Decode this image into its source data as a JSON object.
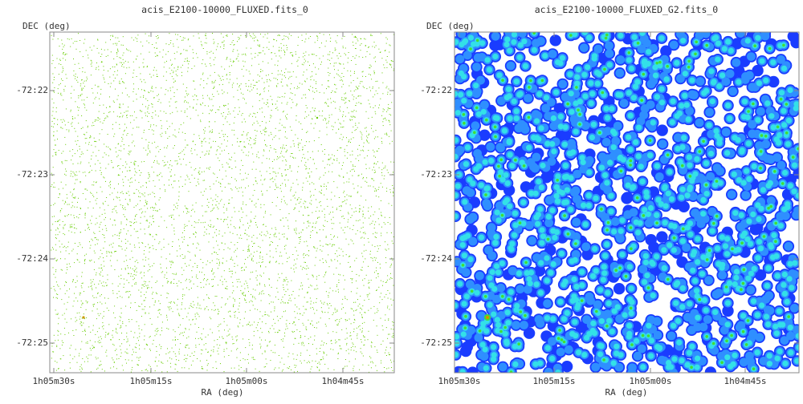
{
  "chart_data": [
    {
      "type": "heatmap",
      "title": "acis_E2100-10000_FLUXED.fits_0",
      "xlabel": "RA (deg)",
      "ylabel": "DEC (deg)",
      "xticks": [
        "1h05m30s",
        "1h05m15s",
        "1h05m00s",
        "1h04m45s"
      ],
      "yticks": [
        "-72:22",
        "-72:23",
        "-72:24",
        "-72:25"
      ],
      "style": "sparse-points",
      "colors": {
        "primary": "#66cc00",
        "hot": "#cc9900"
      }
    },
    {
      "type": "heatmap",
      "title": "acis_E2100-10000_FLUXED_G2.fits_0",
      "xlabel": "RA (deg)",
      "ylabel": "DEC (deg)",
      "xticks": [
        "1h05m30s",
        "1h05m15s",
        "1h05m00s",
        "1h04m45s"
      ],
      "yticks": [
        "-72:22",
        "-72:23",
        "-72:24",
        "-72:25"
      ],
      "style": "smoothed",
      "colors": {
        "low": "#1a3cff",
        "mid": "#2f8fff",
        "high": "#33e0e8",
        "peak": "#44dd33",
        "hot": "#dd8800"
      }
    }
  ]
}
